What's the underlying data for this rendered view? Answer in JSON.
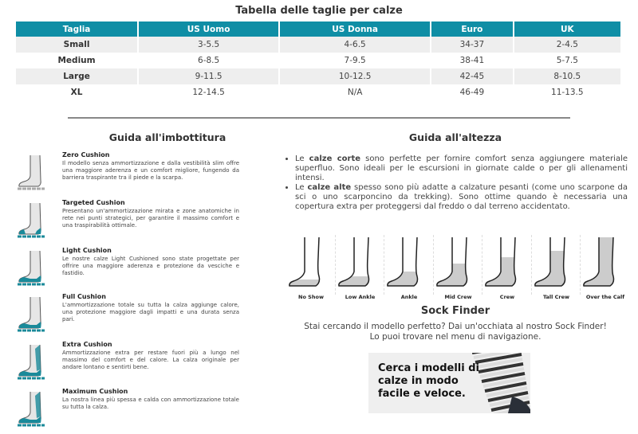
{
  "size_table": {
    "title": "Tabella delle taglie per calze",
    "headers": [
      "Taglia",
      "US Uomo",
      "US Donna",
      "Euro",
      "UK"
    ],
    "rows": [
      [
        "Small",
        "3-5.5",
        "4-6.5",
        "34-37",
        "2-4.5"
      ],
      [
        "Medium",
        "6-8.5",
        "7-9.5",
        "38-41",
        "5-7.5"
      ],
      [
        "Large",
        "9-11.5",
        "10-12.5",
        "42-45",
        "8-10.5"
      ],
      [
        "XL",
        "12-14.5",
        "N/A",
        "46-49",
        "11-13.5"
      ]
    ],
    "header_color": "#0f8ea5"
  },
  "cushion_guide": {
    "title": "Guida all'imbottitura",
    "items": [
      {
        "name": "Zero Cushion",
        "desc": "Il modello senza ammortizzazione e dalla vestibilità slim offre una maggiore aderenza e un comfort migliore, fungendo da barriera traspirante tra il piede e la scarpa."
      },
      {
        "name": "Targeted Cushion",
        "desc": "Presentano un'ammortizzazione mirata e zone anatomiche in rete nei punti strategici, per garantire il massimo comfort e una traspirabilità ottimale."
      },
      {
        "name": "Light Cushion",
        "desc": "Le nostre calze Light Cushioned sono state progettate per offrire una maggiore aderenza e protezione da vesciche e fastidio."
      },
      {
        "name": "Full Cushion",
        "desc": "L'ammortizzazione totale su tutta la calza aggiunge calore, una protezione maggiore dagli impatti e una durata senza pari."
      },
      {
        "name": "Extra Cushion",
        "desc": "Ammortizzazione extra per restare fuori più a lungo nel massimo del comfort e del calore. La calza originale per andare lontano e sentirti bene."
      },
      {
        "name": "Maximum Cushion",
        "desc": "La nostra linea più spessa e calda con ammortizzazione totale su tutta la calza."
      }
    ],
    "accent": "#1a8a9a"
  },
  "height_guide": {
    "title": "Guida all'altezza",
    "bullets": [
      {
        "pre": "Le ",
        "bold": "calze corte",
        "post": " sono perfette per fornire comfort senza aggiungere materiale superfluo. Sono ideali per le escursioni in giornate calde o per gli allenamenti intensi."
      },
      {
        "pre": "Le ",
        "bold": "calze alte",
        "post": " spesso sono più adatte a calzature pesanti (come uno scarpone da sci o uno scarponcino da trekking). Sono ottime quando è necessaria una copertura extra per proteggersi dal freddo o dal terreno accidentato."
      }
    ],
    "heights": [
      "No Show",
      "Low Ankle",
      "Ankle",
      "Mid Crew",
      "Crew",
      "Tall Crew",
      "Over the Calf"
    ]
  },
  "sock_finder": {
    "title": "Sock Finder",
    "line1": "Stai cercando il modello perfetto? Dai un'occhiata al nostro Sock Finder!",
    "line2": "Lo puoi trovare nel menu di navigazione.",
    "banner_text": "Cerca i modelli di calze in modo facile e veloce."
  }
}
